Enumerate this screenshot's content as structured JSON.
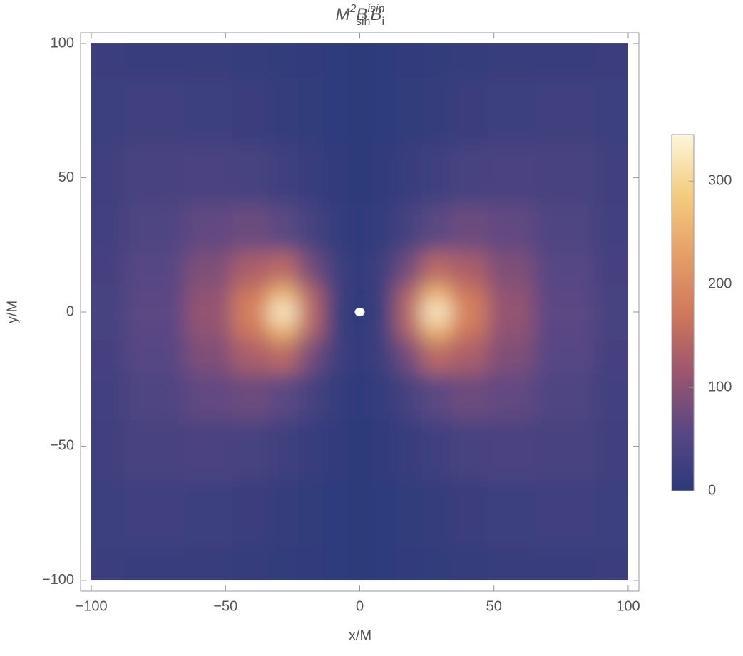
{
  "chart_data": {
    "type": "density",
    "title_parts": [
      {
        "text": "M",
        "pos": "base"
      },
      {
        "text": "2",
        "pos": "sup"
      },
      {
        "text": "B",
        "pos": "base"
      },
      {
        "text": "i",
        "pos": "sup"
      },
      {
        "text": "sin",
        "pos": "sub"
      },
      {
        "text": "B",
        "pos": "base"
      },
      {
        "text": "i",
        "pos": "sub"
      },
      {
        "text": "sin",
        "pos": "sup"
      }
    ],
    "x_label": "x/M",
    "y_label": "y/M",
    "x": [
      -100,
      -75,
      -55,
      -40,
      -28,
      -18,
      -9,
      0,
      9,
      18,
      28,
      40,
      55,
      75,
      100
    ],
    "y": [
      -100,
      -75,
      -50,
      -30,
      -15,
      -6,
      0,
      6,
      15,
      30,
      50,
      75,
      100
    ],
    "values": [
      [
        18,
        17,
        14,
        11,
        8,
        5,
        3,
        2,
        3,
        5,
        8,
        11,
        14,
        17,
        18
      ],
      [
        22,
        25,
        22,
        18,
        12,
        8,
        4,
        2,
        4,
        8,
        12,
        18,
        22,
        25,
        22
      ],
      [
        27,
        36,
        40,
        35,
        25,
        15,
        6,
        2,
        6,
        15,
        25,
        35,
        40,
        36,
        27
      ],
      [
        30,
        45,
        65,
        75,
        60,
        35,
        12,
        3,
        12,
        35,
        60,
        75,
        65,
        45,
        30
      ],
      [
        33,
        55,
        90,
        130,
        150,
        80,
        25,
        5,
        25,
        80,
        150,
        130,
        90,
        55,
        33
      ],
      [
        34,
        58,
        105,
        170,
        260,
        140,
        30,
        5,
        30,
        140,
        260,
        170,
        105,
        58,
        34
      ],
      [
        35,
        60,
        110,
        190,
        340,
        150,
        20,
        null,
        20,
        150,
        340,
        190,
        110,
        60,
        35
      ],
      [
        34,
        58,
        105,
        170,
        260,
        140,
        30,
        5,
        30,
        140,
        260,
        170,
        105,
        58,
        34
      ],
      [
        33,
        55,
        90,
        130,
        150,
        80,
        25,
        5,
        25,
        80,
        150,
        130,
        90,
        55,
        33
      ],
      [
        30,
        45,
        65,
        75,
        60,
        35,
        12,
        3,
        12,
        35,
        60,
        75,
        65,
        45,
        30
      ],
      [
        27,
        36,
        40,
        35,
        25,
        15,
        6,
        2,
        6,
        15,
        25,
        35,
        40,
        36,
        27
      ],
      [
        22,
        25,
        22,
        18,
        12,
        8,
        4,
        2,
        4,
        8,
        12,
        18,
        22,
        25,
        22
      ],
      [
        18,
        17,
        14,
        11,
        8,
        5,
        3,
        2,
        3,
        5,
        8,
        11,
        14,
        17,
        18
      ]
    ],
    "xlim": [
      -104,
      104
    ],
    "ylim": [
      -104,
      104
    ],
    "xticks": [
      {
        "value": -100,
        "label": "−100"
      },
      {
        "value": -50,
        "label": "−50"
      },
      0,
      50,
      100
    ],
    "yticks": [
      {
        "value": -100,
        "label": "−100"
      },
      {
        "value": -50,
        "label": "−50"
      },
      0,
      50,
      100
    ],
    "colormap": [
      "#2c3a7a",
      "#594784",
      "#9c566f",
      "#d0795b",
      "#e6a067",
      "#f4cd7f",
      "#fdf6da"
    ],
    "colorbar_lim": [
      0,
      345
    ],
    "colorbar_ticks": [
      0,
      100,
      200,
      300
    ]
  }
}
